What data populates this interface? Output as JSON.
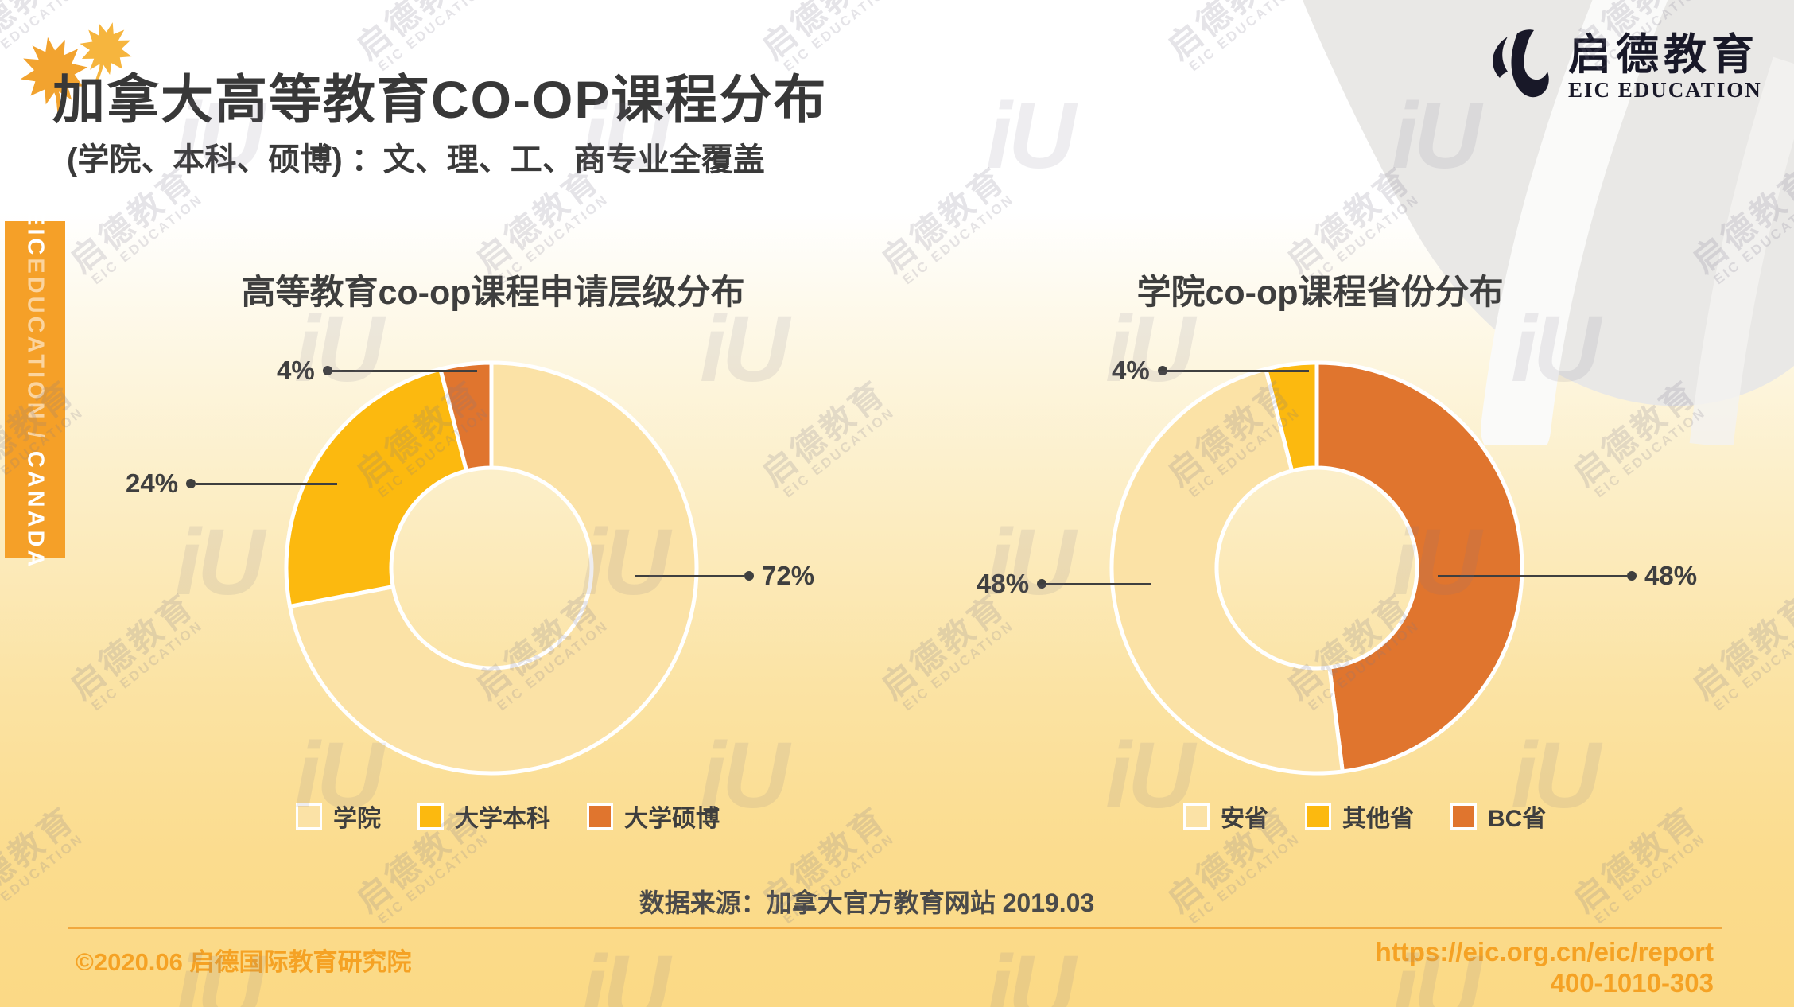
{
  "page": {
    "title": "加拿大高等教育CO-OP课程分布",
    "subtitle": "(学院、本科、硕博) ：文、理、工、商专业全覆盖",
    "source_note": "数据来源：加拿大官方教育网站 2019.03",
    "footer_left": "©2020.06 启德国际教育研究院",
    "footer_url": "https://eic.org.cn/eic/report",
    "footer_phone": "400-1010-303"
  },
  "brand": {
    "logo_cn": "启德教育",
    "logo_en": "EIC EDUCATION",
    "sidebar_eic": "EIC",
    "sidebar_education": "EDUCATION",
    "sidebar_sep": " / ",
    "sidebar_canada": "CANADA"
  },
  "watermark": {
    "line1": "启德教育",
    "line2": "EIC EDUCATION",
    "logo": "iU"
  },
  "colors": {
    "slice_light": "#FBE2A6",
    "slice_gold": "#FCB90F",
    "slice_orange": "#E0752E",
    "accent_tab": "#F5A028",
    "footer_orange": "#F5A224",
    "label_dark": "#3F3F3F"
  },
  "charts": [
    {
      "title": "高等教育co-op课程申请层级分布",
      "slices": [
        {
          "label": "学院",
          "value": 72,
          "pct": "72%",
          "color": "#FBE2A6"
        },
        {
          "label": "大学本科",
          "value": 24,
          "pct": "24%",
          "color": "#FCB90F"
        },
        {
          "label": "大学硕博",
          "value": 4,
          "pct": "4%",
          "color": "#E0752E"
        }
      ],
      "legend": [
        0,
        1,
        2
      ]
    },
    {
      "title": "学院co-op课程省份分布",
      "slices": [
        {
          "label": "BC省",
          "value": 48,
          "pct": "48%",
          "color": "#E0752E"
        },
        {
          "label": "安省",
          "value": 48,
          "pct": "48%",
          "color": "#FBE2A6"
        },
        {
          "label": "其他省",
          "value": 4,
          "pct": "4%",
          "color": "#FCB90F"
        }
      ],
      "legend": [
        1,
        2,
        0
      ]
    }
  ],
  "chart_data": [
    {
      "type": "pie",
      "subtype": "donut",
      "title": "高等教育co-op课程申请层级分布",
      "categories": [
        "学院",
        "大学本科",
        "大学硕博"
      ],
      "values": [
        72,
        24,
        4
      ],
      "unit": "%",
      "colors": [
        "#FBE2A6",
        "#FCB90F",
        "#E0752E"
      ],
      "start_angle_deg": 0,
      "direction": "clockwise",
      "legend_position": "bottom"
    },
    {
      "type": "pie",
      "subtype": "donut",
      "title": "学院co-op课程省份分布",
      "categories": [
        "BC省",
        "安省",
        "其他省"
      ],
      "values": [
        48,
        48,
        4
      ],
      "unit": "%",
      "colors": [
        "#E0752E",
        "#FBE2A6",
        "#FCB90F"
      ],
      "start_angle_deg": 0,
      "direction": "clockwise",
      "legend_position": "bottom"
    }
  ]
}
